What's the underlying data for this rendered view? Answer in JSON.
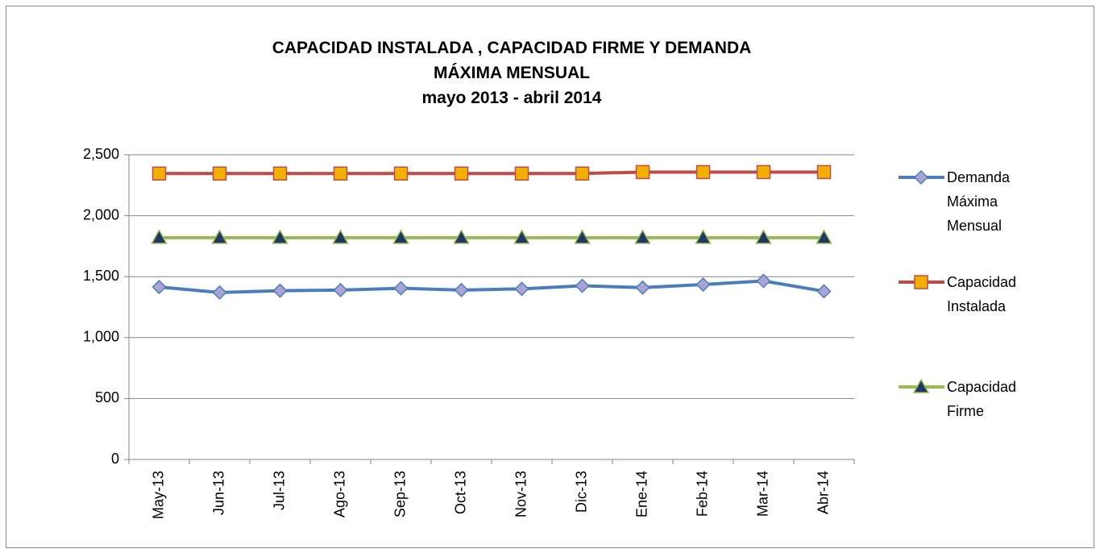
{
  "chart_data": {
    "type": "line",
    "title": "CAPACIDAD INSTALADA , CAPACIDAD FIRME Y DEMANDA MÁXIMA MENSUAL",
    "subtitle": "mayo 2013 - abril 2014",
    "categories": [
      "May-13",
      "Jun-13",
      "Jul-13",
      "Ago-13",
      "Sep-13",
      "Oct-13",
      "Nov-13",
      "Dic-13",
      "Ene-14",
      "Feb-14",
      "Mar-14",
      "Abr-14"
    ],
    "series": [
      {
        "name": "Demanda Máxima Mensual",
        "color": "#4a7ebb",
        "marker": "diamond",
        "marker_color": "#a9a3d6",
        "values": [
          1415,
          1370,
          1385,
          1390,
          1405,
          1390,
          1400,
          1425,
          1410,
          1435,
          1465,
          1380
        ]
      },
      {
        "name": "Capacidad Instalada",
        "color": "#be4b48",
        "marker": "square",
        "marker_color": "#f2b100",
        "values": [
          2346,
          2346,
          2346,
          2346,
          2346,
          2346,
          2346,
          2346,
          2358,
          2358,
          2358,
          2358
        ]
      },
      {
        "name": "Capacidad Firme",
        "color": "#98b954",
        "marker": "triangle",
        "marker_color": "#1f3864",
        "values": [
          1820,
          1820,
          1820,
          1820,
          1820,
          1820,
          1820,
          1820,
          1820,
          1820,
          1820,
          1820
        ]
      }
    ],
    "ylim": [
      0,
      2500
    ],
    "yticks": [
      0,
      500,
      {
        "value": 1000,
        "label": "1,000"
      },
      {
        "value": 1500,
        "label": "1,500"
      },
      {
        "value": 2000,
        "label": "2,000"
      },
      {
        "value": 2500,
        "label": "2,500"
      }
    ],
    "grid": true,
    "legend": "right"
  }
}
